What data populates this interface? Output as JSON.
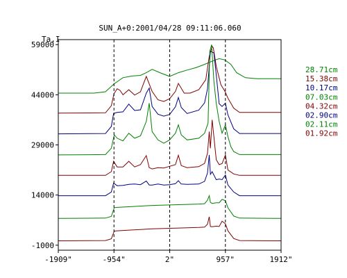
{
  "chart_data": {
    "type": "line",
    "title": "SUN_A+0:2001/04/28 09:11:06.060",
    "ylabel": "Ta,I",
    "xlim": [
      -1909,
      1912
    ],
    "ylim": [
      -2500,
      60500
    ],
    "x_ticks": [
      {
        "value": -1909,
        "label": "-1909\""
      },
      {
        "value": -954,
        "label": "-954\""
      },
      {
        "value": 2,
        "label": "2\""
      },
      {
        "value": 957,
        "label": "957\""
      },
      {
        "value": 1912,
        "label": "1912\""
      }
    ],
    "y_ticks": [
      {
        "value": 59000,
        "label": "59000"
      },
      {
        "value": 44000,
        "label": "44000"
      },
      {
        "value": 29000,
        "label": "29000"
      },
      {
        "value": 14000,
        "label": "14000"
      },
      {
        "value": -1000,
        "label": "-1000"
      }
    ],
    "dashed_vlines": [
      -954,
      2,
      957
    ],
    "series": [
      {
        "name": "28.71cm",
        "color": "#008000",
        "x": [
          -1909,
          -1300,
          -1100,
          -950,
          -800,
          -650,
          -500,
          -400,
          -300,
          -150,
          0,
          150,
          300,
          450,
          600,
          750,
          850,
          950,
          1050,
          1150,
          1300,
          1500,
          1912
        ],
        "y": [
          44500,
          44500,
          44900,
          47300,
          49100,
          49600,
          49800,
          50600,
          51600,
          50500,
          49500,
          50600,
          51400,
          52100,
          53100,
          54200,
          54800,
          54400,
          53100,
          50600,
          49100,
          48800,
          48800
        ]
      },
      {
        "name": "15.38cm",
        "color": "#800000",
        "x": [
          -1909,
          -1100,
          -1000,
          -954,
          -900,
          -850,
          -800,
          -700,
          -600,
          -500,
          -400,
          -300,
          -200,
          -100,
          0,
          100,
          150,
          250,
          350,
          500,
          620,
          680,
          730,
          750,
          800,
          880,
          950,
          1000,
          1100,
          1200,
          1912
        ],
        "y": [
          38500,
          38600,
          40700,
          44300,
          45800,
          45300,
          44000,
          45500,
          43900,
          44900,
          49500,
          45000,
          42500,
          42000,
          42800,
          45000,
          47400,
          44500,
          44500,
          45500,
          48500,
          55500,
          58500,
          58000,
          52500,
          47000,
          45000,
          43000,
          40000,
          38700,
          38700
        ]
      },
      {
        "name": "10.17cm",
        "color": "#000080",
        "x": [
          -1909,
          -1100,
          -1000,
          -960,
          -900,
          -800,
          -700,
          -600,
          -500,
          -400,
          -350,
          -300,
          -200,
          -100,
          0,
          100,
          150,
          200,
          300,
          500,
          600,
          650,
          700,
          760,
          800,
          850,
          900,
          957,
          1000,
          1100,
          1200,
          1912
        ],
        "y": [
          32300,
          32400,
          34500,
          38400,
          38700,
          38900,
          41200,
          39300,
          39500,
          44500,
          46000,
          40500,
          38200,
          37600,
          38100,
          40400,
          43200,
          40200,
          38400,
          39400,
          41600,
          45800,
          57000,
          56500,
          50000,
          41300,
          40500,
          41500,
          38000,
          33800,
          32400,
          32400
        ]
      },
      {
        "name": "07.03cm",
        "color": "#008000",
        "x": [
          -1909,
          -1100,
          -1000,
          -950,
          -900,
          -800,
          -700,
          -600,
          -500,
          -400,
          -350,
          -300,
          -200,
          -100,
          0,
          100,
          150,
          200,
          300,
          500,
          600,
          660,
          690,
          720,
          760,
          800,
          850,
          900,
          957,
          1000,
          1050,
          1100,
          1200,
          1912
        ],
        "y": [
          26000,
          26100,
          28000,
          32000,
          31000,
          30200,
          32500,
          31000,
          31700,
          36000,
          41500,
          33000,
          30500,
          29500,
          30500,
          32500,
          35000,
          32000,
          30500,
          31000,
          32500,
          35500,
          57000,
          59000,
          48000,
          41500,
          36000,
          32500,
          35000,
          31500,
          28500,
          27000,
          26100,
          26100
        ]
      },
      {
        "name": "04.32cm",
        "color": "#800000",
        "x": [
          -1909,
          -1100,
          -1000,
          -960,
          -900,
          -800,
          -700,
          -600,
          -500,
          -400,
          -350,
          -300,
          -200,
          -100,
          0,
          100,
          150,
          200,
          300,
          500,
          600,
          650,
          680,
          700,
          730,
          800,
          850,
          900,
          957,
          1000,
          1100,
          1200,
          1912
        ],
        "y": [
          19900,
          19900,
          21000,
          24100,
          22400,
          22400,
          24100,
          22400,
          23100,
          25800,
          22200,
          21800,
          22200,
          22100,
          22600,
          23100,
          25900,
          22800,
          22200,
          22500,
          23500,
          26500,
          33000,
          28000,
          36500,
          24600,
          23100,
          23400,
          26000,
          21500,
          20300,
          19900,
          19900
        ]
      },
      {
        "name": "02.90cm",
        "color": "#000080",
        "x": [
          -1909,
          -1100,
          -1000,
          -960,
          -900,
          -800,
          -700,
          -600,
          -500,
          -400,
          -350,
          -300,
          -200,
          -100,
          0,
          100,
          150,
          200,
          300,
          500,
          600,
          650,
          680,
          700,
          730,
          800,
          850,
          900,
          957,
          1000,
          1100,
          1200,
          1912
        ],
        "y": [
          13800,
          13800,
          14900,
          17600,
          16800,
          16900,
          17200,
          17300,
          17100,
          18200,
          17000,
          17000,
          17300,
          17000,
          17100,
          17400,
          18300,
          17300,
          17200,
          17300,
          18100,
          20600,
          26000,
          20200,
          21000,
          18600,
          18800,
          18600,
          20000,
          17000,
          14900,
          13800,
          13800
        ]
      },
      {
        "name": "02.11cm",
        "color": "#008000",
        "x": [
          -1909,
          -1100,
          -1000,
          -950,
          -900,
          -700,
          -500,
          -300,
          -100,
          100,
          300,
          500,
          600,
          650,
          680,
          700,
          730,
          800,
          850,
          900,
          957,
          1000,
          1100,
          1200,
          1912
        ],
        "y": [
          7000,
          7100,
          7600,
          10200,
          10300,
          10500,
          10700,
          10900,
          11000,
          11100,
          11200,
          11300,
          11400,
          12500,
          13800,
          11800,
          11500,
          11700,
          11700,
          12700,
          12300,
          10200,
          7700,
          7100,
          7000
        ]
      },
      {
        "name": "01.92cm",
        "color": "#800000",
        "x": [
          -1909,
          -1100,
          -1000,
          -950,
          -900,
          -700,
          -500,
          -300,
          -100,
          100,
          300,
          500,
          600,
          650,
          680,
          700,
          730,
          800,
          850,
          900,
          957,
          1000,
          1100,
          1200,
          1912
        ],
        "y": [
          300,
          400,
          900,
          3200,
          3300,
          3500,
          3700,
          3900,
          4000,
          4100,
          4200,
          4300,
          4400,
          5300,
          7500,
          4600,
          4500,
          4700,
          4600,
          6200,
          5400,
          3300,
          1000,
          400,
          300
        ]
      }
    ]
  }
}
